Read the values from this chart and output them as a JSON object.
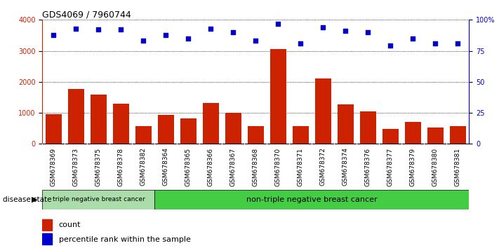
{
  "title": "GDS4069 / 7960744",
  "samples": [
    "GSM678369",
    "GSM678373",
    "GSM678375",
    "GSM678378",
    "GSM678382",
    "GSM678364",
    "GSM678365",
    "GSM678366",
    "GSM678367",
    "GSM678368",
    "GSM678370",
    "GSM678371",
    "GSM678372",
    "GSM678374",
    "GSM678376",
    "GSM678377",
    "GSM678379",
    "GSM678380",
    "GSM678381"
  ],
  "counts": [
    950,
    1780,
    1600,
    1300,
    580,
    940,
    820,
    1320,
    1010,
    580,
    3050,
    580,
    2100,
    1270,
    1040,
    480,
    700,
    530,
    570
  ],
  "percentiles": [
    88,
    93,
    92,
    92,
    83,
    88,
    85,
    93,
    90,
    83,
    97,
    81,
    94,
    91,
    90,
    79,
    85,
    81,
    81
  ],
  "group1_count": 5,
  "group1_label": "triple negative breast cancer",
  "group2_label": "non-triple negative breast cancer",
  "group1_color": "#aaddaa",
  "group2_color": "#44cc44",
  "bar_color": "#CC2200",
  "dot_color": "#0000CC",
  "yticks_left": [
    0,
    1000,
    2000,
    3000,
    4000
  ],
  "yticks_right": [
    0,
    25,
    50,
    75,
    100
  ],
  "ylim_left": [
    0,
    4000
  ],
  "ylim_right": [
    0,
    100
  ],
  "legend_count_label": "count",
  "legend_pct_label": "percentile rank within the sample",
  "disease_state_label": "disease state",
  "background_color": "#ffffff",
  "title_fontsize": 9,
  "tick_fontsize": 7,
  "label_fontsize": 8
}
